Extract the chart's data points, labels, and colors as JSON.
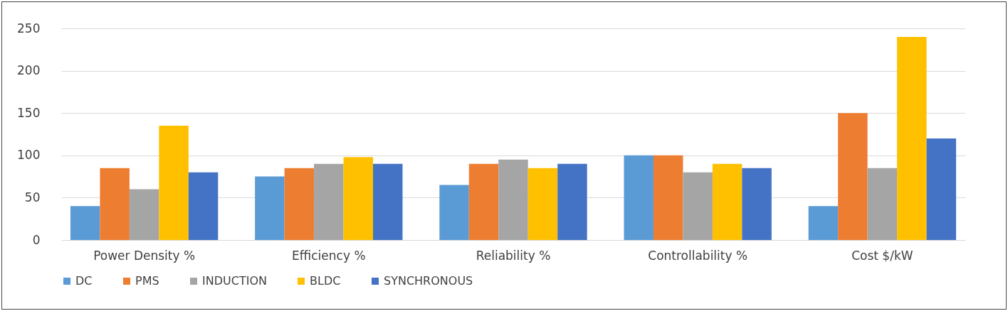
{
  "chart_data": {
    "type": "bar",
    "categories": [
      "Power Density %",
      "Efficiency %",
      "Reliability %",
      "Controllability %",
      "Cost $/kW"
    ],
    "series": [
      {
        "name": "DC",
        "color": "#5b9bd5",
        "values": [
          40,
          75,
          65,
          100,
          40
        ]
      },
      {
        "name": "PMS",
        "color": "#ed7d31",
        "values": [
          85,
          85,
          90,
          100,
          150
        ]
      },
      {
        "name": "INDUCTION",
        "color": "#a5a5a5",
        "values": [
          60,
          90,
          95,
          80,
          85
        ]
      },
      {
        "name": "BLDC",
        "color": "#ffc000",
        "values": [
          135,
          98,
          85,
          90,
          240
        ]
      },
      {
        "name": "SYNCHRONOUS",
        "color": "#4472c4",
        "values": [
          80,
          90,
          90,
          85,
          120
        ]
      }
    ],
    "ylim": [
      0,
      250
    ],
    "yticks": [
      0,
      50,
      100,
      150,
      200,
      250
    ],
    "grid": "y",
    "legend": "bottom"
  }
}
